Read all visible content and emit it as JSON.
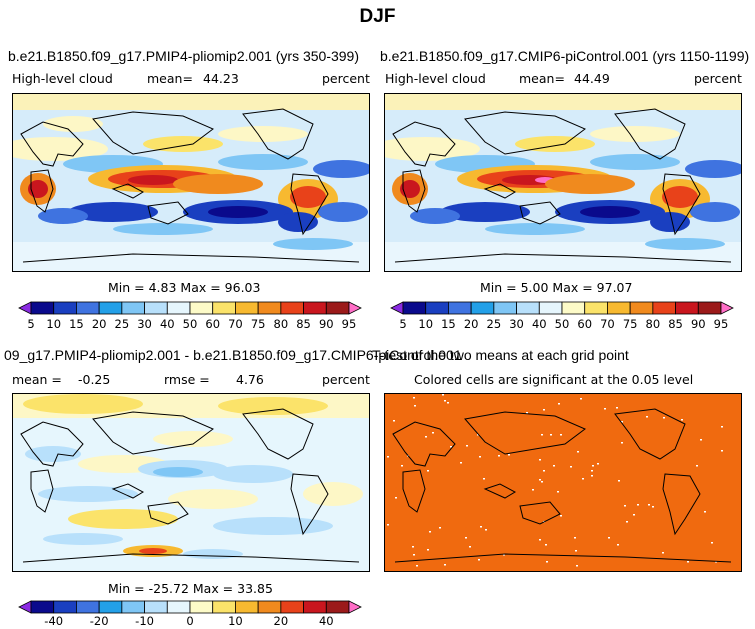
{
  "figure_title": "DJF",
  "panels": [
    {
      "title": "b.e21.B1850.f09_g17.PMIP4-pliomip2.001 (yrs 350-399)",
      "variable": "High-level cloud",
      "mean_label": "mean=",
      "mean_value": "44.23",
      "units": "percent",
      "minmax_label": "Min =    4.83 Max =  96.03"
    },
    {
      "title": "b.e21.B1850.f09_g17.CMIP6-piControl.001 (yrs 1150-1199)",
      "variable": "High-level cloud",
      "mean_label": "mean=",
      "mean_value": "44.49",
      "units": "percent",
      "minmax_label": "Min =    5.00 Max =  97.07"
    },
    {
      "title": "09_g17.PMIP4-pliomip2.001 - b.e21.B1850.f09_g17.CMIP6-piControl.001",
      "mean_label": "mean =",
      "mean_value": "-0.25",
      "rmse_label": "rmse =",
      "rmse_value": "4.76",
      "units": "percent",
      "minmax_label": "Min = -25.72 Max =  33.85"
    },
    {
      "title": "T-test of the two means at each grid point",
      "subtitle": "Colored cells are significant at the 0.05 level"
    }
  ],
  "colorbars": {
    "absolute": {
      "ticks": [
        "5",
        "10",
        "15",
        "20",
        "25",
        "30",
        "40",
        "50",
        "60",
        "70",
        "75",
        "80",
        "85",
        "90",
        "95"
      ],
      "colors": [
        "#8a2be2",
        "#0a0a8c",
        "#1a3fc0",
        "#3f73e0",
        "#23a0e8",
        "#7fc6f5",
        "#b8e0fb",
        "#e6f6fd",
        "#fdfbc8",
        "#fbe36a",
        "#f7b930",
        "#f08a1e",
        "#e8421a",
        "#c9161e",
        "#9b1a1a",
        "#ff6ec7"
      ]
    },
    "difference": {
      "ticks": [
        "-40",
        "-20",
        "-10",
        "0",
        "10",
        "20",
        "40"
      ],
      "tick_slot": [
        1,
        3,
        5,
        7,
        9,
        11,
        13
      ],
      "colors": [
        "#8a2be2",
        "#0a0a8c",
        "#1a3fc0",
        "#3f73e0",
        "#23a0e8",
        "#7fc6f5",
        "#b8e0fb",
        "#e6f6fd",
        "#fdfbc8",
        "#fbe36a",
        "#f7b930",
        "#f08a1e",
        "#e8421a",
        "#c9161e",
        "#9b1a1a",
        "#ff6ec7"
      ]
    }
  },
  "chart_data": [
    {
      "type": "heatmap",
      "title": "b.e21.B1850.f09_g17.PMIP4-pliomip2.001 (yrs 350-399)",
      "variable": "High-level cloud",
      "units": "percent",
      "mean": 44.23,
      "min": 4.83,
      "max": 96.03,
      "levels": [
        5,
        10,
        15,
        20,
        25,
        30,
        40,
        50,
        60,
        70,
        75,
        80,
        85,
        90,
        95
      ]
    },
    {
      "type": "heatmap",
      "title": "b.e21.B1850.f09_g17.CMIP6-piControl.001 (yrs 1150-1199)",
      "variable": "High-level cloud",
      "units": "percent",
      "mean": 44.49,
      "min": 5.0,
      "max": 97.07,
      "levels": [
        5,
        10,
        15,
        20,
        25,
        30,
        40,
        50,
        60,
        70,
        75,
        80,
        85,
        90,
        95
      ]
    },
    {
      "type": "heatmap",
      "title": "09_g17.PMIP4-pliomip2.001 - b.e21.B1850.f09_g17.CMIP6-piControl.001",
      "units": "percent",
      "mean": -0.25,
      "rmse": 4.76,
      "min": -25.72,
      "max": 33.85,
      "levels": [
        -40,
        -20,
        -10,
        0,
        10,
        20,
        40
      ]
    },
    {
      "type": "heatmap",
      "title": "T-test of the two means at each grid point",
      "subtitle": "Colored cells are significant at the 0.05 level",
      "significance_color": "#f06a0f"
    }
  ]
}
